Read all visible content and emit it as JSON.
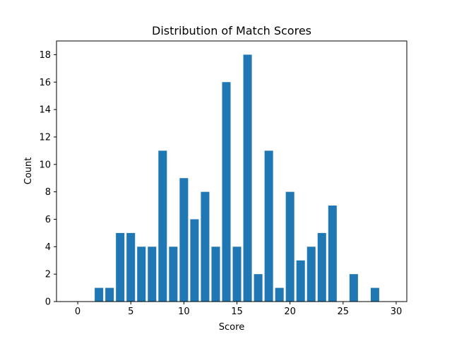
{
  "chart_data": {
    "type": "bar",
    "title": "Distribution of Match Scores",
    "xlabel": "Score",
    "ylabel": "Count",
    "xlim": [
      -2,
      31
    ],
    "ylim": [
      0,
      19
    ],
    "x_ticks": [
      0,
      5,
      10,
      15,
      20,
      25,
      30
    ],
    "y_ticks": [
      0,
      2,
      4,
      6,
      8,
      10,
      12,
      14,
      16,
      18
    ],
    "bar_color": "#1f77b4",
    "grid": false,
    "x": [
      2,
      3,
      4,
      5,
      6,
      7,
      8,
      9,
      10,
      11,
      12,
      13,
      14,
      15,
      16,
      17,
      18,
      19,
      20,
      21,
      22,
      23,
      24,
      26,
      28
    ],
    "values": [
      1,
      1,
      5,
      5,
      4,
      4,
      11,
      4,
      9,
      6,
      8,
      4,
      16,
      4,
      18,
      2,
      11,
      1,
      8,
      3,
      4,
      5,
      7,
      2,
      1
    ]
  }
}
